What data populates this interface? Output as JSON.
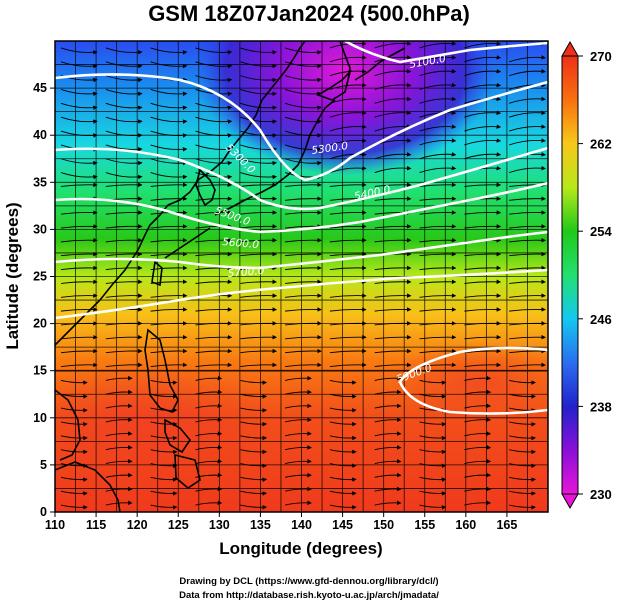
{
  "figure": {
    "title": "GSM 18Z07Jan2024 (500.0hPa)",
    "xlabel": "Longitude (degrees)",
    "ylabel": "Latitude  (degrees)",
    "credit_line1": "Drawing by DCL (https://www.gfd-dennou.org/library/dcl/)",
    "credit_line2": "Data from http://database.rish.kyoto-u.ac.jp/arch/jmadata/"
  },
  "axes": {
    "x_ticks": [
      "110",
      "115",
      "120",
      "125",
      "130",
      "135",
      "140",
      "145",
      "150",
      "155",
      "160",
      "165"
    ],
    "y_ticks": [
      "0",
      "5",
      "10",
      "15",
      "20",
      "25",
      "30",
      "35",
      "40",
      "45"
    ],
    "x_range": [
      110,
      170
    ],
    "y_range": [
      0,
      50
    ]
  },
  "colorbar": {
    "ticks": [
      "230",
      "238",
      "246",
      "254",
      "262",
      "270"
    ],
    "range": [
      230,
      270
    ],
    "quantity": "temperature"
  },
  "contours": {
    "labels": [
      "5100.0",
      "5300.0",
      "5300.0",
      "5400.0",
      "5500.0",
      "5600.0",
      "5700.0",
      "5900.0"
    ]
  },
  "chart_data": {
    "type": "heatmap",
    "title": "GSM 18Z07Jan2024 (500.0hPa)",
    "xlabel": "Longitude (degrees)",
    "ylabel": "Latitude  (degrees)",
    "xlim": [
      110,
      170
    ],
    "ylim": [
      0,
      50
    ],
    "colorbar_range": [
      230,
      270
    ],
    "overlays": [
      "geopotential height contours (white)",
      "wind streamlines/vectors (black)",
      "coastlines"
    ],
    "contour_levels": [
      5100,
      5300,
      5400,
      5500,
      5600,
      5700,
      5900
    ]
  },
  "colors": {
    "background": "#ffffff",
    "contour": "#ffffff",
    "streamline": "#000000",
    "coastline": "#000000"
  }
}
